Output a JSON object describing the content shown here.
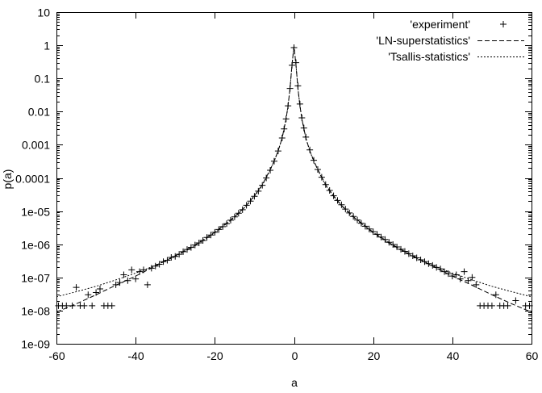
{
  "chart_data": {
    "type": "scatter",
    "xlabel": "a",
    "ylabel": "p(a)",
    "xlim": [
      -60,
      60
    ],
    "ylim": [
      1e-09,
      10
    ],
    "yscale": "log",
    "grid": false,
    "legend_position": "top-right",
    "x_ticks": [
      "-60",
      "-40",
      "-20",
      "0",
      "20",
      "40",
      "60"
    ],
    "y_ticks": [
      "1e-09",
      "1e-08",
      "1e-07",
      "1e-06",
      "1e-05",
      "0.0001",
      "0.001",
      "0.01",
      "0.1",
      "1",
      "10"
    ],
    "series": [
      {
        "name": "'experiment'",
        "style": "plus-markers",
        "points": [
          [
            -59.5,
            1.4e-08
          ],
          [
            -58.5,
            1.4e-08
          ],
          [
            -57.5,
            1.4e-08
          ],
          [
            -56.0,
            1.4e-08
          ],
          [
            -55.0,
            5e-08
          ],
          [
            -54.0,
            1.4e-08
          ],
          [
            -53.0,
            1.4e-08
          ],
          [
            -52.0,
            3e-08
          ],
          [
            -51.0,
            1.4e-08
          ],
          [
            -50.0,
            3.5e-08
          ],
          [
            -49.0,
            4.5e-08
          ],
          [
            -48.0,
            1.4e-08
          ],
          [
            -47.0,
            1.4e-08
          ],
          [
            -46.0,
            1.4e-08
          ],
          [
            -45.0,
            6e-08
          ],
          [
            -44.0,
            7e-08
          ],
          [
            -43.0,
            1.2e-07
          ],
          [
            -42.0,
            8e-08
          ],
          [
            -41.0,
            1.7e-07
          ],
          [
            -40.0,
            9e-08
          ],
          [
            -39.0,
            1.5e-07
          ],
          [
            -38.0,
            1.7e-07
          ],
          [
            -37.0,
            6e-08
          ],
          [
            -36.0,
            1.9e-07
          ],
          [
            -35.0,
            2.2e-07
          ],
          [
            -34.0,
            2.5e-07
          ],
          [
            -33.0,
            3e-07
          ],
          [
            -32.0,
            3.3e-07
          ],
          [
            -31.0,
            4e-07
          ],
          [
            -30.0,
            4.3e-07
          ],
          [
            -29.0,
            5e-07
          ],
          [
            -28.0,
            6e-07
          ],
          [
            -27.0,
            7e-07
          ],
          [
            -26.0,
            8e-07
          ],
          [
            -25.0,
            9.5e-07
          ],
          [
            -24.0,
            1.1e-06
          ],
          [
            -23.0,
            1.3e-06
          ],
          [
            -22.0,
            1.6e-06
          ],
          [
            -21.0,
            1.9e-06
          ],
          [
            -20.0,
            2.3e-06
          ],
          [
            -19.0,
            2.8e-06
          ],
          [
            -18.0,
            3.4e-06
          ],
          [
            -17.0,
            4.2e-06
          ],
          [
            -16.0,
            5.3e-06
          ],
          [
            -15.0,
            6.7e-06
          ],
          [
            -14.0,
            8.6e-06
          ],
          [
            -13.0,
            1.1e-05
          ],
          [
            -12.0,
            1.5e-05
          ],
          [
            -11.0,
            2e-05
          ],
          [
            -10.0,
            2.8e-05
          ],
          [
            -9.0,
            4e-05
          ],
          [
            -8.0,
            6e-05
          ],
          [
            -7.0,
            0.0001
          ],
          [
            -6.0,
            0.00017
          ],
          [
            -5.0,
            0.00032
          ],
          [
            -4.0,
            0.00065
          ],
          [
            -3.0,
            0.0016
          ],
          [
            -2.5,
            0.003
          ],
          [
            -2.0,
            0.006
          ],
          [
            -1.5,
            0.015
          ],
          [
            -1.0,
            0.05
          ],
          [
            -0.5,
            0.25
          ],
          [
            0.0,
            0.85
          ],
          [
            0.5,
            0.3
          ],
          [
            1.0,
            0.06
          ],
          [
            1.5,
            0.017
          ],
          [
            2.0,
            0.0065
          ],
          [
            2.5,
            0.0032
          ],
          [
            3.0,
            0.0017
          ],
          [
            4.0,
            0.0007
          ],
          [
            5.0,
            0.00034
          ],
          [
            6.0,
            0.00018
          ],
          [
            7.0,
            0.000105
          ],
          [
            8.0,
            6.3e-05
          ],
          [
            9.0,
            4.2e-05
          ],
          [
            10.0,
            2.9e-05
          ],
          [
            11.0,
            2.1e-05
          ],
          [
            12.0,
            1.55e-05
          ],
          [
            13.0,
            1.15e-05
          ],
          [
            14.0,
            8.8e-06
          ],
          [
            15.0,
            6.9e-06
          ],
          [
            16.0,
            5.4e-06
          ],
          [
            17.0,
            4.3e-06
          ],
          [
            18.0,
            3.5e-06
          ],
          [
            19.0,
            2.9e-06
          ],
          [
            20.0,
            2.4e-06
          ],
          [
            21.0,
            2e-06
          ],
          [
            22.0,
            1.65e-06
          ],
          [
            23.0,
            1.4e-06
          ],
          [
            24.0,
            1.15e-06
          ],
          [
            25.0,
            9.8e-07
          ],
          [
            26.0,
            8.3e-07
          ],
          [
            27.0,
            7.1e-07
          ],
          [
            28.0,
            6.1e-07
          ],
          [
            29.0,
            5.2e-07
          ],
          [
            30.0,
            4.5e-07
          ],
          [
            31.0,
            3.9e-07
          ],
          [
            32.0,
            3.4e-07
          ],
          [
            33.0,
            3e-07
          ],
          [
            34.0,
            2.6e-07
          ],
          [
            35.0,
            2.3e-07
          ],
          [
            36.0,
            2e-07
          ],
          [
            37.0,
            1.8e-07
          ],
          [
            38.0,
            1.5e-07
          ],
          [
            39.0,
            1.3e-07
          ],
          [
            40.0,
            1.1e-07
          ],
          [
            41.0,
            1.2e-07
          ],
          [
            42.0,
            9e-08
          ],
          [
            43.0,
            1.5e-07
          ],
          [
            44.0,
            8e-08
          ],
          [
            45.0,
            1e-07
          ],
          [
            46.0,
            6e-08
          ],
          [
            47.0,
            1.4e-08
          ],
          [
            48.0,
            1.4e-08
          ],
          [
            49.0,
            1.4e-08
          ],
          [
            50.0,
            1.4e-08
          ],
          [
            51.0,
            3e-08
          ],
          [
            52.0,
            1.4e-08
          ],
          [
            53.0,
            1.4e-08
          ],
          [
            54.0,
            1.4e-08
          ],
          [
            56.0,
            2e-08
          ],
          [
            58.5,
            1.4e-08
          ],
          [
            59.5,
            1.4e-08
          ]
        ]
      },
      {
        "name": "'LN-superstatistics'",
        "style": "dashed",
        "points": [
          [
            -60,
            9e-09
          ],
          [
            -55,
            1.6e-08
          ],
          [
            -50,
            3e-08
          ],
          [
            -45,
            5.8e-08
          ],
          [
            -40,
            1.1e-07
          ],
          [
            -35,
            2.2e-07
          ],
          [
            -30,
            4.5e-07
          ],
          [
            -25,
            9.5e-07
          ],
          [
            -20,
            2.3e-06
          ],
          [
            -15,
            6.8e-06
          ],
          [
            -12,
            1.5e-05
          ],
          [
            -10,
            2.9e-05
          ],
          [
            -8,
            6.2e-05
          ],
          [
            -6,
            0.00018
          ],
          [
            -5,
            0.00033
          ],
          [
            -4,
            0.00066
          ],
          [
            -3,
            0.0016
          ],
          [
            -2,
            0.006
          ],
          [
            -1.5,
            0.015
          ],
          [
            -1,
            0.05
          ],
          [
            -0.5,
            0.25
          ],
          [
            0,
            0.95
          ],
          [
            0.5,
            0.25
          ],
          [
            1,
            0.05
          ],
          [
            1.5,
            0.015
          ],
          [
            2,
            0.006
          ],
          [
            3,
            0.0016
          ],
          [
            4,
            0.00066
          ],
          [
            5,
            0.00033
          ],
          [
            6,
            0.00018
          ],
          [
            8,
            6.2e-05
          ],
          [
            10,
            2.9e-05
          ],
          [
            12,
            1.5e-05
          ],
          [
            15,
            6.8e-06
          ],
          [
            20,
            2.3e-06
          ],
          [
            25,
            9.5e-07
          ],
          [
            30,
            4.5e-07
          ],
          [
            35,
            2.2e-07
          ],
          [
            40,
            1.1e-07
          ],
          [
            45,
            5.8e-08
          ],
          [
            50,
            3e-08
          ],
          [
            55,
            1.6e-08
          ],
          [
            60,
            9e-09
          ]
        ]
      },
      {
        "name": "'Tsallis-statistics'",
        "style": "dotted",
        "points": [
          [
            -60,
            2.6e-08
          ],
          [
            -55,
            3.7e-08
          ],
          [
            -50,
            5.4e-08
          ],
          [
            -45,
            8.4e-08
          ],
          [
            -40,
            1.35e-07
          ],
          [
            -35,
            2.3e-07
          ],
          [
            -30,
            4.3e-07
          ],
          [
            -25,
            9e-07
          ],
          [
            -20,
            2.2e-06
          ],
          [
            -15,
            6.5e-06
          ],
          [
            -12,
            1.45e-05
          ],
          [
            -10,
            2.8e-05
          ],
          [
            -8,
            6e-05
          ],
          [
            -6,
            0.000175
          ],
          [
            -5,
            0.00032
          ],
          [
            -4,
            0.00065
          ],
          [
            -3,
            0.0016
          ],
          [
            -2,
            0.006
          ],
          [
            -1.5,
            0.015
          ],
          [
            -1,
            0.05
          ],
          [
            -0.5,
            0.25
          ],
          [
            0,
            0.95
          ],
          [
            0.5,
            0.25
          ],
          [
            1,
            0.05
          ],
          [
            1.5,
            0.015
          ],
          [
            2,
            0.006
          ],
          [
            3,
            0.0016
          ],
          [
            4,
            0.00065
          ],
          [
            5,
            0.00032
          ],
          [
            6,
            0.000175
          ],
          [
            8,
            6e-05
          ],
          [
            10,
            2.8e-05
          ],
          [
            12,
            1.45e-05
          ],
          [
            15,
            6.5e-06
          ],
          [
            20,
            2.2e-06
          ],
          [
            25,
            9e-07
          ],
          [
            30,
            4.3e-07
          ],
          [
            35,
            2.3e-07
          ],
          [
            40,
            1.35e-07
          ],
          [
            45,
            8.4e-08
          ],
          [
            50,
            5.4e-08
          ],
          [
            55,
            3.7e-08
          ],
          [
            60,
            2.6e-08
          ]
        ]
      }
    ]
  }
}
